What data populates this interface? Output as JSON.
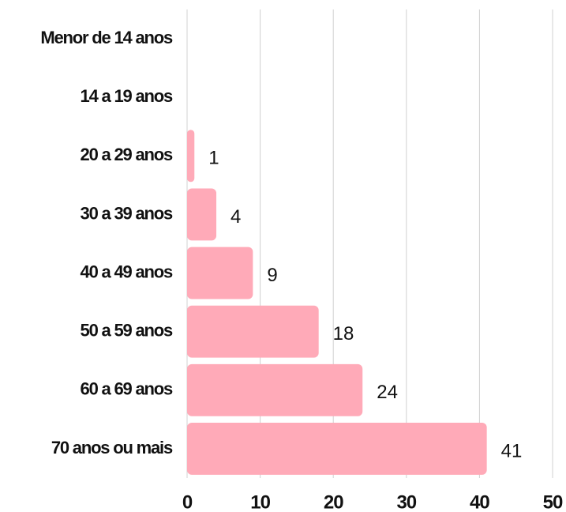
{
  "chart_data": {
    "type": "bar",
    "orientation": "horizontal",
    "categories": [
      "Menor de 14 anos",
      "14 a 19 anos",
      "20 a 29 anos",
      "30 a 39 anos",
      "40 a 49 anos",
      "50 a 59 anos",
      "60 a 69 anos",
      "70 anos ou mais"
    ],
    "values": [
      0,
      0,
      1,
      4,
      9,
      18,
      24,
      41
    ],
    "color": "#ffaab8",
    "xlim": [
      0,
      50
    ],
    "xticks": [
      0,
      10,
      20,
      30,
      40,
      50
    ],
    "grid": true
  }
}
